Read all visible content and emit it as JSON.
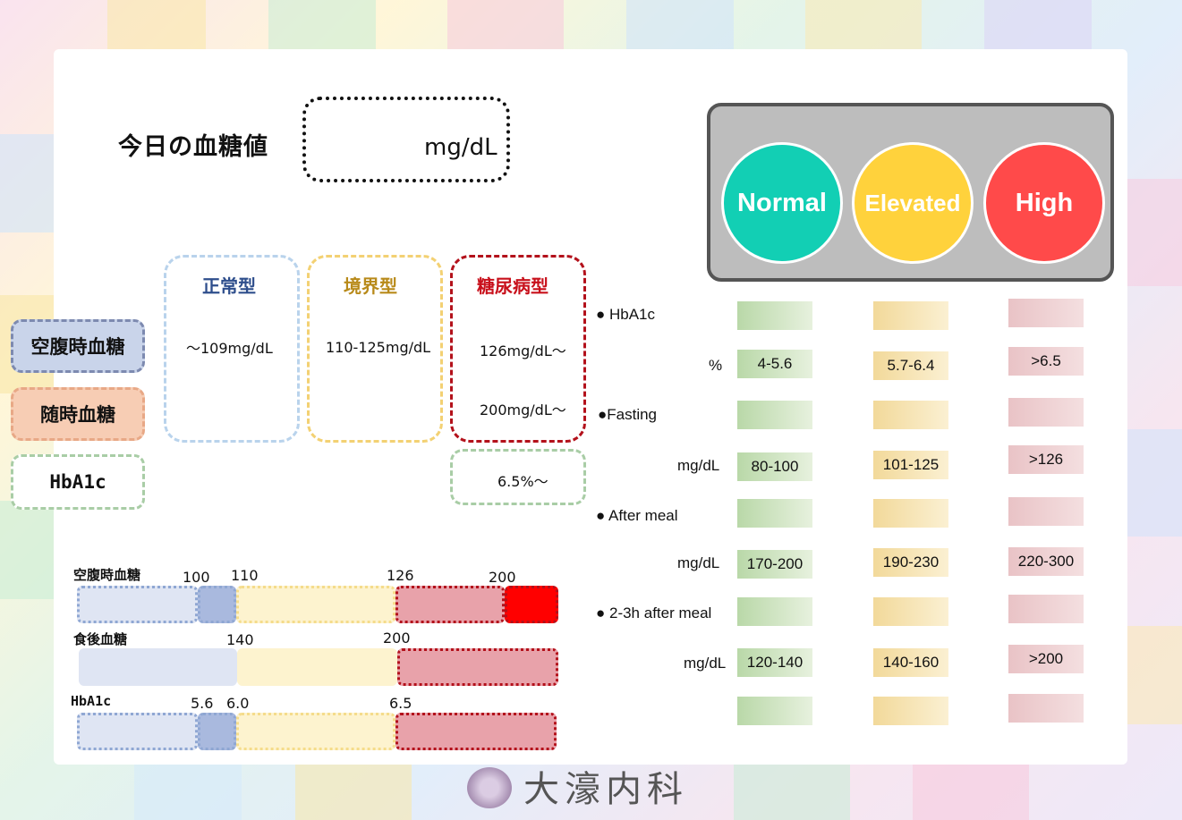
{
  "header": {
    "title": "今日の血糖値",
    "unit": "mg/dL"
  },
  "categories": [
    {
      "label": "空腹時血糖",
      "bg": "#c9d4ea",
      "border": "#7d8ab0"
    },
    {
      "label": "随時血糖",
      "bg": "#f7cdb4",
      "border": "#e8a886"
    },
    {
      "label": "HbA1c",
      "bg": "#ffffff",
      "border": "#a9cda6"
    }
  ],
  "columns": {
    "normal": {
      "title": "正常型",
      "fasting": "～109mg/dL",
      "color": "#2e4e8c"
    },
    "border": {
      "title": "境界型",
      "fasting": "110-125mg/dL",
      "color": "#b88a1a"
    },
    "diabetic": {
      "title": "糖尿病型",
      "fasting": "126mg/dL～",
      "random": "200mg/dL～",
      "hba1c": "6.5%～",
      "color": "#c8101b"
    }
  },
  "bars": {
    "fasting": {
      "label": "空腹時血糖",
      "ticks": [
        "100",
        "110",
        "126",
        "200"
      ]
    },
    "postmeal": {
      "label": "食後血糖",
      "ticks": [
        "140",
        "200"
      ]
    },
    "hba1c": {
      "label": "HbA1c",
      "ticks": [
        "5.6",
        "6.0",
        "6.5"
      ]
    }
  },
  "signal": {
    "normal": {
      "label": "Normal",
      "color": "#12cfb4"
    },
    "elevated": {
      "label": "Elevated",
      "color": "#ffd23c"
    },
    "high": {
      "label": "High",
      "color": "#ff4a4a"
    }
  },
  "table": {
    "hba1c_label": "● HbA1c",
    "hba1c_unit": "%",
    "hba1c": [
      "4-5.6",
      "5.7-6.4",
      ">6.5"
    ],
    "fasting_label": "●Fasting",
    "fasting_unit": "mg/dL",
    "fasting": [
      "80-100",
      "101-125",
      ">126"
    ],
    "aftermeal_label": "● After meal",
    "aftermeal_unit": "mg/dL",
    "aftermeal": [
      "170-200",
      "190-230",
      "220-300"
    ],
    "after23_label": "● 2-3h after meal",
    "after23_unit": "mg/dL",
    "after23": [
      "120-140",
      "140-160",
      ">200"
    ]
  },
  "footer": {
    "clinic": "大濠内科"
  }
}
